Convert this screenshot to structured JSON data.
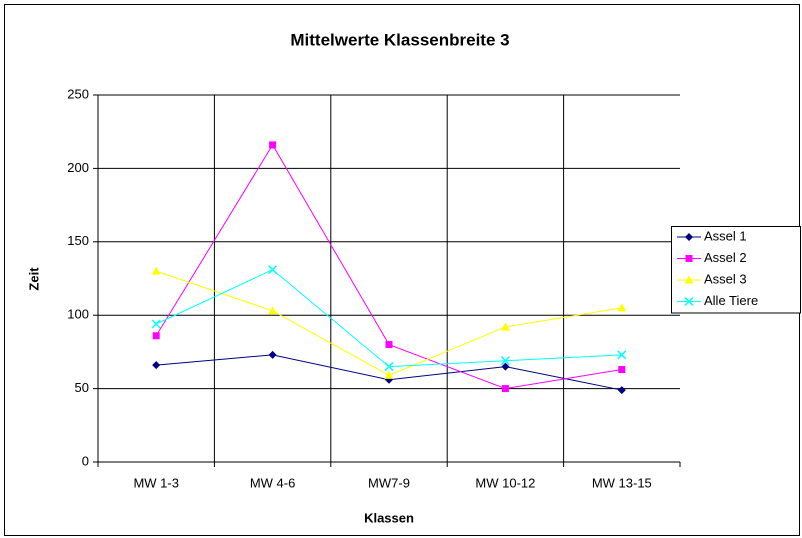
{
  "chart_data": {
    "type": "line",
    "title": "Mittelwerte Klassenbreite 3",
    "x_label": "Klassen",
    "y_label": "Zeit",
    "categories": [
      "MW 1-3",
      "MW 4-6",
      "MW7-9",
      "MW 10-12",
      "MW 13-15"
    ],
    "series": [
      {
        "name": "Assel 1",
        "color": "#000080",
        "marker": "diamond",
        "values": [
          66,
          73,
          56,
          65,
          49
        ]
      },
      {
        "name": "Assel 2",
        "color": "#ff00ff",
        "marker": "square",
        "values": [
          86,
          216,
          80,
          50,
          63
        ]
      },
      {
        "name": "Assel 3",
        "color": "#ffff00",
        "marker": "triangle",
        "values": [
          130,
          103,
          59,
          92,
          105
        ]
      },
      {
        "name": "Alle Tiere",
        "color": "#00ffff",
        "marker": "x",
        "values": [
          94,
          131,
          65,
          69,
          73
        ]
      }
    ],
    "ylim": [
      0,
      250
    ],
    "yticks": [
      0,
      50,
      100,
      150,
      200,
      250
    ],
    "grid": true,
    "legend": "right"
  }
}
